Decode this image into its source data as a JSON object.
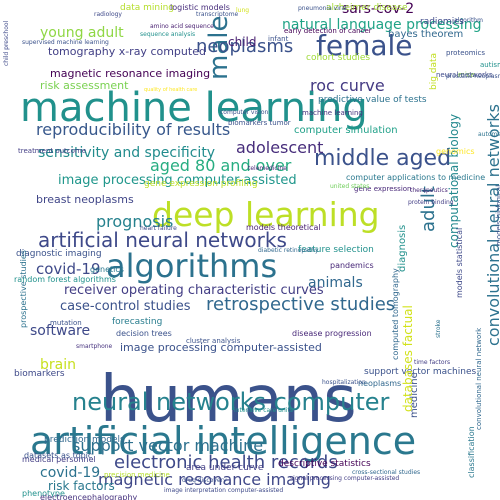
{
  "words": [
    {
      "text": "humans",
      "color": "#3b528b"
    },
    {
      "text": "machine learning",
      "color": "#21918c"
    },
    {
      "text": "artificial intelligence",
      "color": "#2a788e"
    },
    {
      "text": "deep learning",
      "color": "#bddf26"
    },
    {
      "text": "algorithms",
      "color": "#2c728e"
    },
    {
      "text": "female",
      "color": "#3b528b"
    },
    {
      "text": "neural networks computer",
      "color": "#26828e"
    },
    {
      "text": "artificial neural networks",
      "color": "#3e4989"
    },
    {
      "text": "male",
      "color": "#2c728e"
    },
    {
      "text": "neoplasms",
      "color": "#3b528b"
    },
    {
      "text": "middle aged",
      "color": "#3b528b"
    },
    {
      "text": "reproducibility of results",
      "color": "#38588c"
    },
    {
      "text": "retrospective studies",
      "color": "#31688e"
    },
    {
      "text": "electronic health records",
      "color": "#3e4989"
    },
    {
      "text": "magnetic resonance imaging",
      "color": "#3f4788"
    },
    {
      "text": "support vector machine",
      "color": "#2d708e"
    },
    {
      "text": "convolutional neural networks",
      "color": "#2c728e"
    },
    {
      "text": "sars-cov-2",
      "color": "#440154"
    },
    {
      "text": "adult",
      "color": "#2c728e"
    },
    {
      "text": "roc curve",
      "color": "#443a83"
    },
    {
      "text": "aged 80 and over",
      "color": "#27ad81"
    },
    {
      "text": "adolescent",
      "color": "#472d7b"
    },
    {
      "text": "prognosis",
      "color": "#26828e"
    },
    {
      "text": "covid-19",
      "color": "#3e4989"
    },
    {
      "text": "young adult",
      "color": "#8fd744"
    },
    {
      "text": "natural language processing",
      "color": "#20a386"
    },
    {
      "text": "sensitivity and specificity",
      "color": "#228c8d"
    },
    {
      "text": "image processing computer-assisted",
      "color": "#1f968b"
    },
    {
      "text": "receiver operating characteristic curves",
      "color": "#433e85"
    },
    {
      "text": "animals",
      "color": "#31688e"
    },
    {
      "text": "brain",
      "color": "#c8e020"
    },
    {
      "text": "software",
      "color": "#3e4989"
    },
    {
      "text": "case-control studies",
      "color": "#3b528b"
    },
    {
      "text": "covid-19",
      "color": "#2c728e"
    },
    {
      "text": "risk factors",
      "color": "#2a788e"
    },
    {
      "text": "child",
      "color": "#481f70"
    },
    {
      "text": "tomography x-ray computed",
      "color": "#424086"
    },
    {
      "text": "magnetic resonance imaging",
      "color": "#440154"
    },
    {
      "text": "computational biology",
      "color": "#23898e"
    },
    {
      "text": "breast neoplasms",
      "color": "#404688"
    },
    {
      "text": "alzheimer disease",
      "color": "#a5db36"
    },
    {
      "text": "bayes theorem",
      "color": "#31688e"
    },
    {
      "text": "risk assessment",
      "color": "#7ad151"
    },
    {
      "text": "image processing computer-assisted",
      "color": "#3b528b"
    },
    {
      "text": "support vector machines",
      "color": "#3b528b"
    },
    {
      "text": "prediction models",
      "color": "#31688e"
    },
    {
      "text": "area under curve",
      "color": "#433e85"
    },
    {
      "text": "descriptive statistics",
      "color": "#440154"
    },
    {
      "text": "diagnosis",
      "color": "#21918c"
    },
    {
      "text": "medicine",
      "color": "#3b528b"
    },
    {
      "text": "biomarkers",
      "color": "#3e4989"
    },
    {
      "text": "data mining",
      "color": "#b5de2b"
    },
    {
      "text": "logistic models",
      "color": "#472d7b"
    },
    {
      "text": "forecasting",
      "color": "#287d8e"
    },
    {
      "text": "diagnostic imaging",
      "color": "#3b528b"
    },
    {
      "text": "feature selection",
      "color": "#21918c"
    },
    {
      "text": "computer simulation",
      "color": "#1fa088"
    },
    {
      "text": "gene expression profiling",
      "color": "#bddf26"
    },
    {
      "text": "models theoretical",
      "color": "#481f70"
    },
    {
      "text": "pandemics",
      "color": "#482878"
    },
    {
      "text": "decision trees",
      "color": "#3b528b"
    },
    {
      "text": "neoplasms",
      "color": "#31688e"
    },
    {
      "text": "radiomics",
      "color": "#3e4989"
    },
    {
      "text": "big data",
      "color": "#c2df23"
    },
    {
      "text": "genetics",
      "color": "#2a788e"
    },
    {
      "text": "mutation",
      "color": "#3b528b"
    },
    {
      "text": "phenotype",
      "color": "#21918c"
    },
    {
      "text": "electroencephalography",
      "color": "#46327e"
    },
    {
      "text": "cluster analysis",
      "color": "#3b528b"
    },
    {
      "text": "disease progression",
      "color": "#482878"
    },
    {
      "text": "computer applications to medicine",
      "color": "#2a788e"
    },
    {
      "text": "cohort studies",
      "color": "#a0da39"
    },
    {
      "text": "predictive value of tests",
      "color": "#2c728e"
    },
    {
      "text": "models statistical",
      "color": "#3e4989"
    },
    {
      "text": "biomarkers tumor",
      "color": "#3b528b"
    },
    {
      "text": "computed tomography",
      "color": "#31688e"
    },
    {
      "text": "machine learning",
      "color": "#46327e"
    },
    {
      "text": "databases factual",
      "color": "#d2e21b"
    },
    {
      "text": "medical personnel",
      "color": "#433e85"
    },
    {
      "text": "datasets as topic",
      "color": "#3b528b"
    },
    {
      "text": "prospective studies",
      "color": "#2c728e"
    },
    {
      "text": "random forest algorithms",
      "color": "#21918c"
    },
    {
      "text": "gene expression",
      "color": "#482878"
    },
    {
      "text": "treatment outcome",
      "color": "#433e85"
    },
    {
      "text": "infant",
      "color": "#3b528b"
    },
    {
      "text": "early detection of cancer",
      "color": "#440154"
    },
    {
      "text": "proteomics",
      "color": "#3b528b"
    },
    {
      "text": "mice",
      "color": "#8fd744"
    },
    {
      "text": "genomics",
      "color": "#fde725"
    },
    {
      "text": "neural networks",
      "color": "#3e4989"
    },
    {
      "text": "convolutional neural network",
      "color": "#31688e"
    },
    {
      "text": "classification",
      "color": "#2a788e"
    },
    {
      "text": "models biological",
      "color": "#3b528b"
    },
    {
      "text": "autism",
      "color": "#21918c"
    },
    {
      "text": "child preschool",
      "color": "#3e4989"
    },
    {
      "text": "transcriptome",
      "color": "#3b528b"
    },
    {
      "text": "amino acid sequence",
      "color": "#481f70"
    },
    {
      "text": "supervised machine learning",
      "color": "#3b528b"
    },
    {
      "text": "united states",
      "color": "#6ece58"
    },
    {
      "text": "therapeutics",
      "color": "#482878"
    },
    {
      "text": "protein binding",
      "color": "#433e85"
    },
    {
      "text": "heart failure",
      "color": "#3e4989"
    },
    {
      "text": "diabetic retinopathy",
      "color": "#31688e"
    },
    {
      "text": "intensive care units",
      "color": "#21918c"
    },
    {
      "text": "prostatic neoplasms",
      "color": "#3b528b"
    },
    {
      "text": "telemedicine",
      "color": "#482878"
    },
    {
      "text": "drug discovery",
      "color": "#3b528b"
    },
    {
      "text": "precision medicine",
      "color": "#b5de2b"
    },
    {
      "text": "image interpretation computer-assisted",
      "color": "#3e4989"
    },
    {
      "text": "time factors",
      "color": "#433e85"
    },
    {
      "text": "sequence analysis",
      "color": "#21918c"
    },
    {
      "text": "hospitalization",
      "color": "#3b528b"
    },
    {
      "text": "smartphone",
      "color": "#46327e"
    },
    {
      "text": "stroke",
      "color": "#2c728e"
    },
    {
      "text": "cross-sectional studies",
      "color": "#31688e"
    },
    {
      "text": "signal processing computer-assisted",
      "color": "#433e85"
    },
    {
      "text": "lung",
      "color": "#d2e21b"
    },
    {
      "text": "radiology",
      "color": "#3e4989"
    },
    {
      "text": "pneumonia viral",
      "color": "#3b528b"
    },
    {
      "text": "algorithm",
      "color": "#3b528b"
    },
    {
      "text": "computer vision",
      "color": "#3b528b"
    },
    {
      "text": "automation",
      "color": "#2c728e"
    },
    {
      "text": "quality of health care",
      "color": "#fde725"
    }
  ]
}
